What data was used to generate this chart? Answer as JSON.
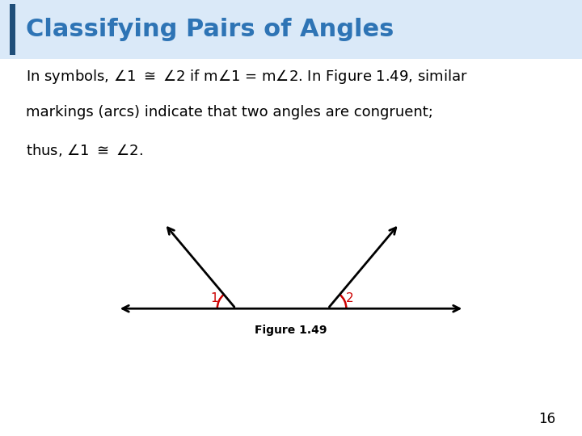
{
  "title": "Classifying Pairs of Angles",
  "title_color": "#2E74B5",
  "title_bg_color": "#DAE9F8",
  "title_bar_color": "#1F4E79",
  "bg_color": "#FFFFFF",
  "figure_caption": "Figure 1.49",
  "angle_color": "#CC0000",
  "arrow_color": "#000000",
  "page_number": "16",
  "text_color": "#000000",
  "text_fontsize": 13,
  "title_fontsize": 22,
  "caption_fontsize": 10
}
